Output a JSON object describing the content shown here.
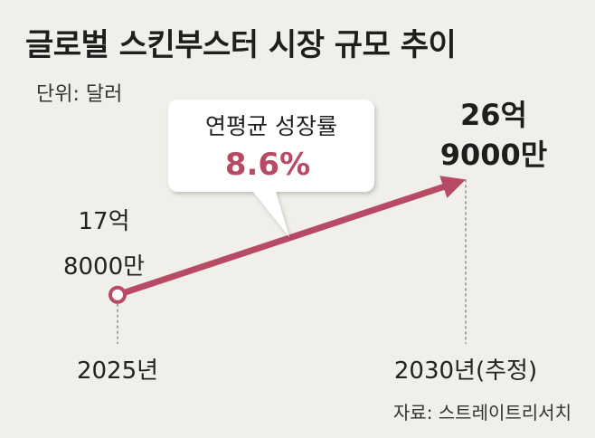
{
  "title": "글로벌 스킨부스터 시장 규모 추이",
  "unit_label": "단위: 달러",
  "source_label": "자료: 스트레이트리서치",
  "chart_data": {
    "type": "line",
    "x": [
      "2025년",
      "2030년(추정)"
    ],
    "values": [
      1780000000,
      2690000000
    ],
    "data_labels": [
      [
        "17억",
        "8000만"
      ],
      [
        "26억",
        "9000만"
      ]
    ],
    "annotation": {
      "title": "연평균 성장률",
      "value": "8.6%"
    },
    "series_color": "#b84a64",
    "annotation_value_color": "#b84a64"
  }
}
